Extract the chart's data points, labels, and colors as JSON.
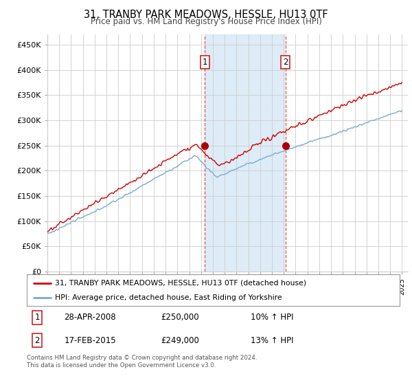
{
  "title": "31, TRANBY PARK MEADOWS, HESSLE, HU13 0TF",
  "subtitle": "Price paid vs. HM Land Registry's House Price Index (HPI)",
  "ylim": [
    0,
    470000
  ],
  "yticks": [
    0,
    50000,
    100000,
    150000,
    200000,
    250000,
    300000,
    350000,
    400000,
    450000
  ],
  "xlim_start": 1995.0,
  "xlim_end": 2025.5,
  "sale1_x": 2008.33,
  "sale1_y": 250000,
  "sale1_label": "1",
  "sale2_x": 2015.13,
  "sale2_y": 249000,
  "sale2_label": "2",
  "line_color_red": "#cc0000",
  "line_color_blue": "#7aabcf",
  "shade_color": "#d6e8f5",
  "marker_color_red": "#aa0000",
  "legend_line1": "31, TRANBY PARK MEADOWS, HESSLE, HU13 0TF (detached house)",
  "legend_line2": "HPI: Average price, detached house, East Riding of Yorkshire",
  "table_row1_num": "1",
  "table_row1_date": "28-APR-2008",
  "table_row1_price": "£250,000",
  "table_row1_hpi": "10% ↑ HPI",
  "table_row2_num": "2",
  "table_row2_date": "17-FEB-2015",
  "table_row2_price": "£249,000",
  "table_row2_hpi": "13% ↑ HPI",
  "footnote": "Contains HM Land Registry data © Crown copyright and database right 2024.\nThis data is licensed under the Open Government Licence v3.0.",
  "background_color": "#ffffff",
  "plot_bg_color": "#ffffff"
}
